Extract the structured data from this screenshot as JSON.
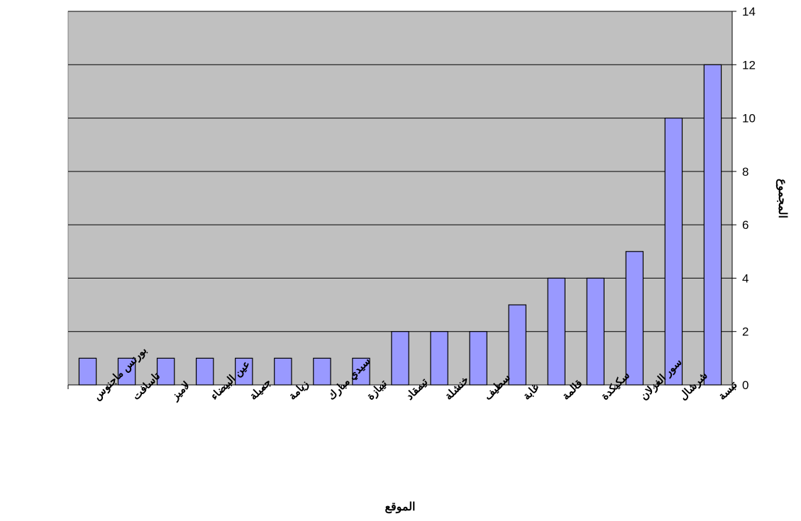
{
  "colors": {
    "plot_background": "#c0c0c0",
    "bar_fill": "#9999ff",
    "bar_stroke": "#000000",
    "gridline": "#000000"
  },
  "chart_data": {
    "type": "bar",
    "title": "",
    "xlabel": "الموقع",
    "ylabel": "المجموع",
    "ylim": [
      0,
      14
    ],
    "yticks": [
      0,
      2,
      4,
      6,
      8,
      10,
      12,
      14
    ],
    "y_axis_position": "right",
    "grid": true,
    "legend": "none",
    "categories": [
      "بورتس ماجنوس",
      "تاسافت",
      "لاميز",
      "عين البيضاء",
      "جميلة",
      "زيامة",
      "سيدي مبارك",
      "تيبازة",
      "تيمقاد",
      "خنشلة",
      "سطيف",
      "غابة",
      "قالمة",
      "سكيكدة",
      "سور الغزلان",
      "شرشال",
      "تبسة"
    ],
    "values": [
      1,
      1,
      1,
      1,
      1,
      1,
      1,
      1,
      2,
      2,
      2,
      3,
      4,
      4,
      5,
      10,
      12
    ]
  }
}
